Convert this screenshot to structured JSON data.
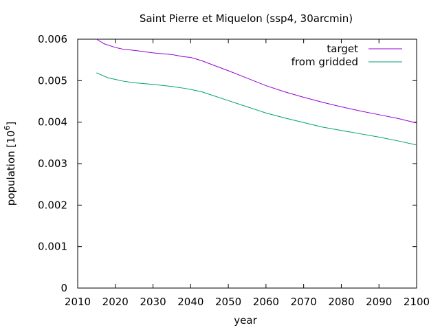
{
  "chart_data": {
    "type": "line",
    "title": "Saint Pierre et Miquelon (ssp4, 30arcmin)",
    "xlabel": "year",
    "ylabel_text": "population [10",
    "ylabel_sup": "6",
    "ylabel_close": "]",
    "xlim": [
      2010,
      2100
    ],
    "ylim": [
      0,
      0.006
    ],
    "x_ticks": [
      "2010",
      "2020",
      "2030",
      "2040",
      "2050",
      "2060",
      "2070",
      "2080",
      "2090",
      "2100"
    ],
    "y_ticks": [
      "0",
      "0.001",
      "0.002",
      "0.003",
      "0.004",
      "0.005",
      "0.006"
    ],
    "grid": false,
    "legend_position": "top-right",
    "series": [
      {
        "name": "target",
        "color": "#9400d3",
        "x": [
          2015,
          2017,
          2020,
          2022,
          2025,
          2030,
          2035,
          2038,
          2040,
          2043,
          2045,
          2050,
          2055,
          2060,
          2065,
          2070,
          2075,
          2080,
          2085,
          2090,
          2095,
          2100
        ],
        "y": [
          0.006,
          0.00589,
          0.0058,
          0.00576,
          0.00573,
          0.00567,
          0.00563,
          0.00558,
          0.00556,
          0.00548,
          0.00541,
          0.00524,
          0.00506,
          0.00488,
          0.00473,
          0.0046,
          0.00448,
          0.00437,
          0.00427,
          0.00418,
          0.00409,
          0.00398
        ]
      },
      {
        "name": "from gridded",
        "color": "#009e73",
        "x": [
          2015,
          2017,
          2018,
          2020,
          2022,
          2025,
          2030,
          2035,
          2038,
          2040,
          2043,
          2045,
          2050,
          2055,
          2060,
          2065,
          2070,
          2075,
          2080,
          2085,
          2090,
          2095,
          2100
        ],
        "y": [
          0.00519,
          0.00511,
          0.00507,
          0.00503,
          0.00499,
          0.00495,
          0.00491,
          0.00486,
          0.00482,
          0.00479,
          0.00473,
          0.00467,
          0.00452,
          0.00437,
          0.00422,
          0.0041,
          0.00399,
          0.00388,
          0.0038,
          0.00372,
          0.00364,
          0.00355,
          0.00345
        ]
      }
    ]
  }
}
